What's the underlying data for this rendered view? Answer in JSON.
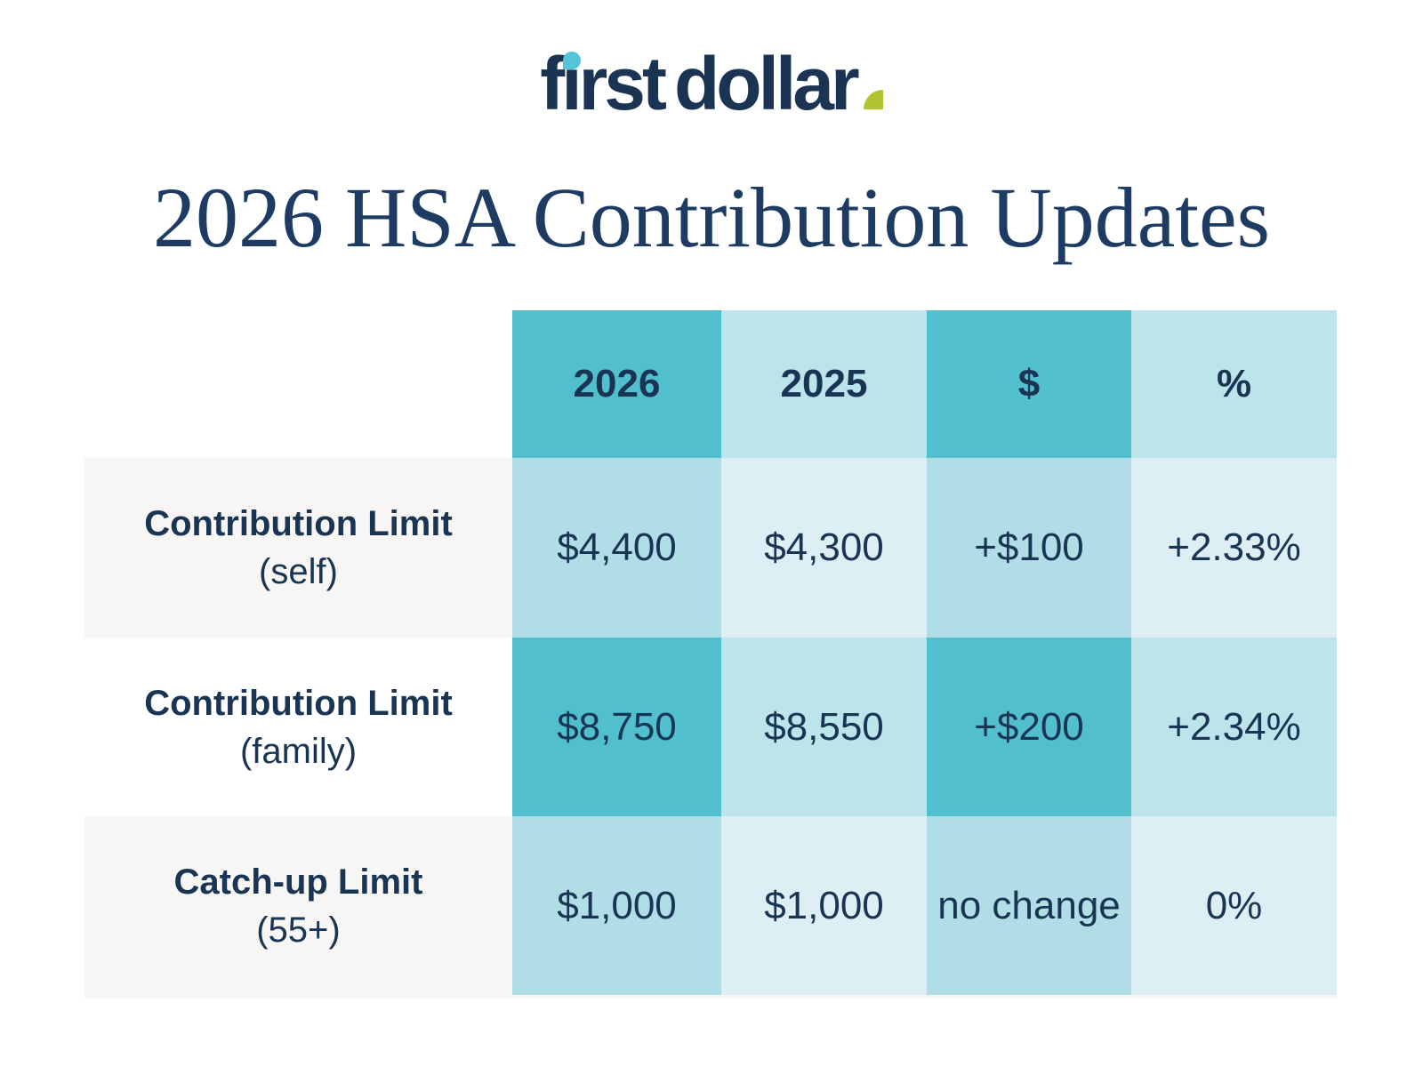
{
  "logo": {
    "f": "f",
    "i_dotless": "ı",
    "rst": "rst",
    "dollar": "dollar",
    "navy": "#1B3454",
    "accent_cyan": "#55C4D8",
    "accent_lime": "#B0C430"
  },
  "title": {
    "text": "2026 HSA Contribution Updates",
    "color": "#1E3C63"
  },
  "table": {
    "columns": [
      "2026",
      "2025",
      "$",
      "%"
    ],
    "rows": [
      {
        "label": "Contribution Limit",
        "sublabel": "(self)",
        "values": [
          "$4,400",
          "$4,300",
          "+$100",
          "+2.33%"
        ]
      },
      {
        "label": "Contribution Limit",
        "sublabel": "(family)",
        "values": [
          "$8,750",
          "$8,550",
          "+$200",
          "+2.34%"
        ]
      },
      {
        "label": "Catch-up Limit",
        "sublabel": "(55+)",
        "values": [
          "$1,000",
          "$1,000",
          "no change",
          "0%"
        ]
      }
    ],
    "colors": {
      "teal_strong": "#52BFCE",
      "blue_mid": "#BBE4EB",
      "teal_soft": "#B1DEE6",
      "blue_faint": "#DDEFF4",
      "label_gray": "#F7F6F4",
      "label_white": "#FFFFFF",
      "text_navy": "#1A3553"
    }
  },
  "chart_data": {
    "type": "table",
    "title": "2026 HSA Contribution Updates",
    "columns": [
      "",
      "2026",
      "2025",
      "$",
      "%"
    ],
    "rows": [
      [
        "Contribution Limit (self)",
        "$4,400",
        "$4,300",
        "+$100",
        "+2.33%"
      ],
      [
        "Contribution Limit (family)",
        "$8,750",
        "$8,550",
        "+$200",
        "+2.34%"
      ],
      [
        "Catch-up Limit (55+)",
        "$1,000",
        "$1,000",
        "no change",
        "0%"
      ]
    ]
  }
}
